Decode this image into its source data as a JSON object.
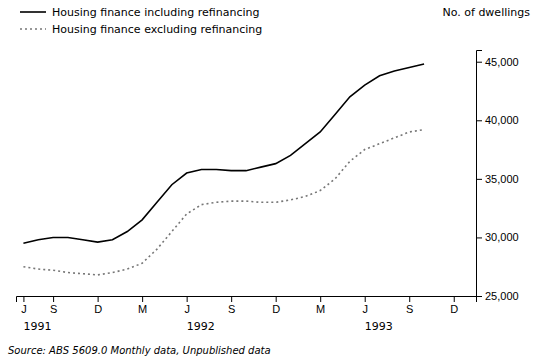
{
  "chart_data": {
    "type": "line",
    "categories": [
      "J",
      null,
      "S",
      null,
      null,
      "D",
      null,
      null,
      "M",
      null,
      null,
      "J",
      null,
      null,
      "S",
      null,
      null,
      "D",
      null,
      null,
      "M",
      null,
      null,
      "J",
      null,
      null,
      "S",
      null,
      null,
      "D",
      null
    ],
    "series": [
      {
        "name": "Housing finance including refinancing",
        "color": "#000000",
        "line_style": "solid",
        "values": [
          29500,
          29800,
          30000,
          30000,
          29800,
          29600,
          29800,
          30500,
          31500,
          33000,
          34500,
          35500,
          35800,
          35800,
          35700,
          35700,
          36000,
          36300,
          37000,
          38000,
          39000,
          40500,
          42000,
          43000,
          43800,
          44200,
          44500,
          44800,
          null,
          null,
          null
        ]
      },
      {
        "name": "Housing finance excluding refinancing",
        "color": "#777777",
        "line_style": "dotted",
        "values": [
          27500,
          27300,
          27200,
          27000,
          26900,
          26800,
          27000,
          27300,
          27800,
          29000,
          30500,
          32000,
          32800,
          33000,
          33100,
          33100,
          33000,
          33000,
          33200,
          33500,
          34000,
          35000,
          36500,
          37500,
          38000,
          38500,
          39000,
          39200,
          null,
          null,
          null
        ]
      }
    ],
    "ylim": [
      25000,
      46000
    ],
    "yticks": [
      {
        "value": 25000,
        "label": "25,000"
      },
      {
        "value": 30000,
        "label": "30,000"
      },
      {
        "value": 35000,
        "label": "35,000"
      },
      {
        "value": 40000,
        "label": "40,000"
      },
      {
        "value": 45000,
        "label": "45,000"
      }
    ],
    "y_label": "No. of dwellings",
    "annotations": [
      {
        "text": "1991",
        "x": 0
      },
      {
        "text": "1992",
        "x": 11
      },
      {
        "text": "1993",
        "x": 23
      }
    ],
    "source": "Source: ABS 5609.0 Monthly data, Unpublished data",
    "legend": "upper left",
    "grid": false
  }
}
